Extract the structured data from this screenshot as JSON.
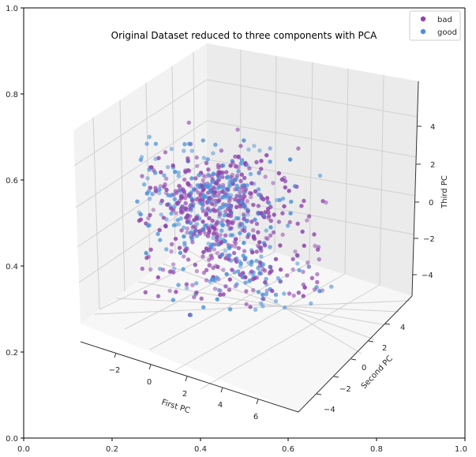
{
  "chart_data": {
    "type": "scatter",
    "title": "Original Dataset reduced to three components with PCA",
    "outer_axes": {
      "x_ticks": [
        "0.0",
        "0.2",
        "0.4",
        "0.6",
        "0.8",
        "1.0"
      ],
      "y_ticks": [
        "0.0",
        "0.2",
        "0.4",
        "0.6",
        "0.8",
        "1.0"
      ],
      "xlim": [
        0,
        1
      ],
      "ylim": [
        0,
        1
      ]
    },
    "axes3d": {
      "xlabel": "First PC",
      "ylabel": "Second PC",
      "zlabel": "Third PC",
      "xlim": [
        -4,
        7.5
      ],
      "ylim": [
        -5,
        5.5
      ],
      "zlim": [
        -5,
        5.5
      ],
      "x_ticks": [
        "−2",
        "0",
        "2",
        "4",
        "6"
      ],
      "y_ticks": [
        "−4",
        "−2",
        "0",
        "2",
        "4"
      ],
      "z_ticks": [
        "−4",
        "−2",
        "0",
        "2",
        "4"
      ],
      "grid": true
    },
    "legend": {
      "placement": "top-right",
      "entries": [
        {
          "label": "bad",
          "color": "#8e44ad"
        },
        {
          "label": "good",
          "color": "#4a90d9"
        }
      ]
    },
    "series": [
      {
        "name": "bad",
        "color": "#8e44ad",
        "count": 500
      },
      {
        "name": "good",
        "color": "#4a90d9",
        "count": 320
      }
    ]
  }
}
